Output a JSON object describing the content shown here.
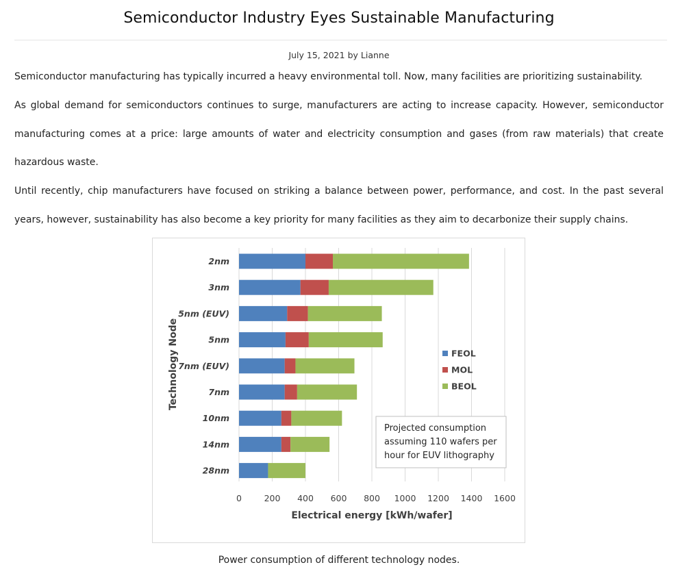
{
  "article": {
    "title": "Semiconductor Industry Eyes Sustainable Manufacturing",
    "date": "July 15, 2021",
    "by": "by",
    "author": "Lianne",
    "paragraphs": [
      "Semiconductor manufacturing has typically incurred a heavy environmental toll. Now, many facilities are prioritizing sustainability.",
      "As global demand for semiconductors continues to surge, manufacturers are acting to increase capacity. However, semiconductor manufacturing comes at a price: large amounts of water and electricity consumption and gases (from raw materials) that create hazardous waste.",
      "Until recently, chip manufacturers have focused on striking a balance between power, performance, and cost. In the past several years, however, sustainability has also become a key priority for many facilities as they aim to decarbonize their supply chains."
    ],
    "caption": "Power consumption of different technology nodes."
  },
  "chart_data": {
    "type": "bar",
    "orientation": "horizontal",
    "stacked": true,
    "title": "",
    "xlabel": "Electrical energy [kWh/wafer]",
    "ylabel": "Technology Node",
    "xlim": [
      0,
      1600
    ],
    "xticks": [
      0,
      200,
      400,
      600,
      800,
      1000,
      1200,
      1400,
      1600
    ],
    "grid": true,
    "legend_position": "right",
    "categories": [
      "2nm",
      "3nm",
      "5nm (EUV)",
      "5nm",
      "7nm (EUV)",
      "7nm",
      "10nm",
      "14nm",
      "28nm"
    ],
    "series": [
      {
        "name": "FEOL",
        "color": "#4F81BD",
        "values": [
          400,
          370,
          290,
          280,
          275,
          275,
          255,
          255,
          175
        ]
      },
      {
        "name": "MOL",
        "color": "#C0504D",
        "values": [
          165,
          170,
          125,
          140,
          65,
          75,
          60,
          55,
          0
        ]
      },
      {
        "name": "BEOL",
        "color": "#9BBB59",
        "values": [
          820,
          630,
          445,
          445,
          355,
          360,
          305,
          235,
          225
        ]
      }
    ],
    "annotation": [
      "Projected consumption",
      "assuming 110 wafers per",
      "hour for EUV lithography"
    ]
  }
}
